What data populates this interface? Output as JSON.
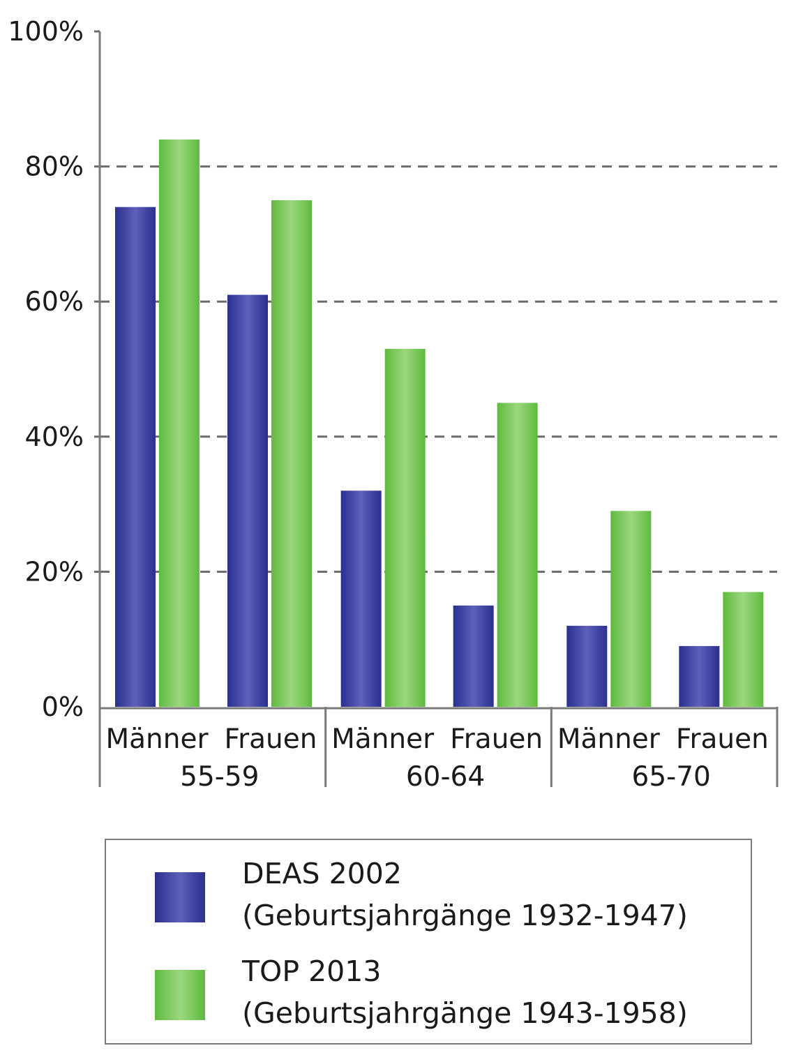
{
  "chart_data": {
    "type": "bar",
    "categories": [
      "Männer",
      "Frauen",
      "Männer",
      "Frauen",
      "Männer",
      "Frauen"
    ],
    "groups": [
      {
        "label": "55-59",
        "categories": [
          "Männer",
          "Frauen"
        ]
      },
      {
        "label": "60-64",
        "categories": [
          "Männer",
          "Frauen"
        ]
      },
      {
        "label": "65-70",
        "categories": [
          "Männer",
          "Frauen"
        ]
      }
    ],
    "series": [
      {
        "name": "DEAS 2002",
        "subtitle": "(Geburtsjahrgänge 1932-1947)",
        "color": "#2e3192",
        "values": [
          74,
          61,
          32,
          15,
          12,
          9
        ]
      },
      {
        "name": "TOP 2013",
        "subtitle": "(Geburtsjahrgänge 1943-1958)",
        "color": "#6cc04a",
        "values": [
          84,
          75,
          53,
          45,
          29,
          17
        ]
      }
    ],
    "y_ticks": [
      "0%",
      "20%",
      "40%",
      "60%",
      "80%",
      "100%"
    ],
    "ylim": [
      0,
      100
    ],
    "grid": "dashed horizontal",
    "legend_position": "bottom",
    "title": "",
    "xlabel": "",
    "ylabel": ""
  }
}
